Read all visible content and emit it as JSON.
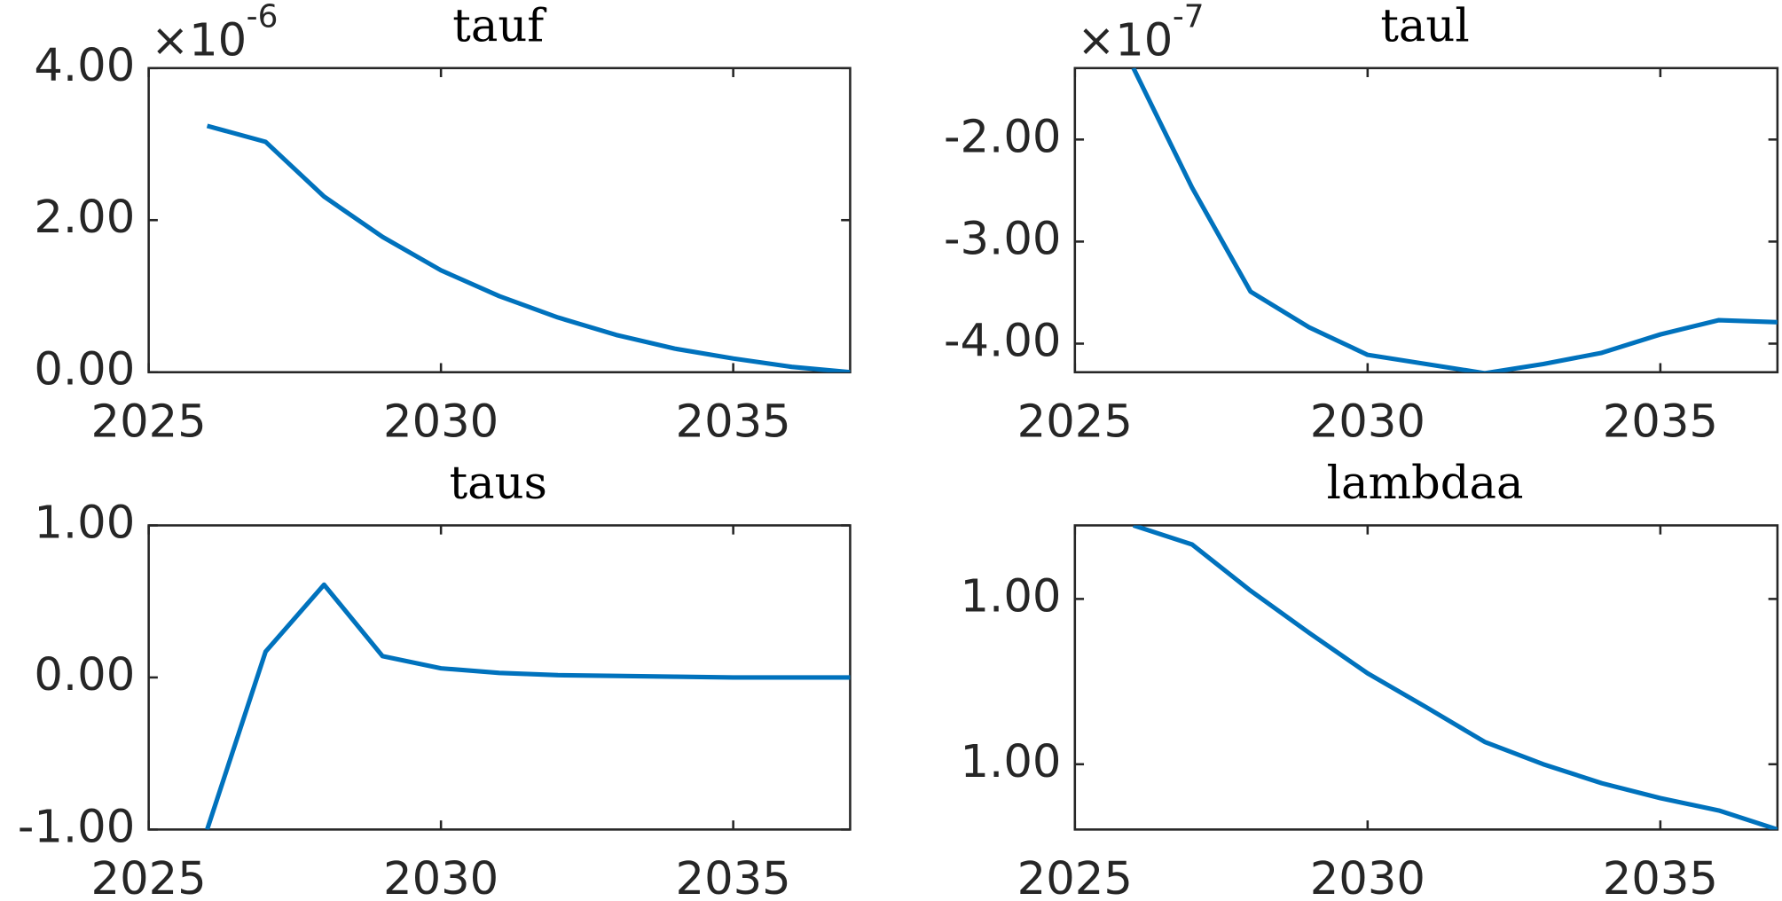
{
  "chart_data": [
    {
      "type": "line",
      "title": "tauf",
      "y_multiplier": "×10",
      "y_exponent": "-6",
      "x": [
        2026,
        2027,
        2028,
        2029,
        2030,
        2031,
        2032,
        2033,
        2034,
        2035,
        2036,
        2037
      ],
      "series": [
        {
          "color": "#0072bd",
          "values": [
            3.24,
            3.03,
            2.31,
            1.78,
            1.34,
            1.0,
            0.72,
            0.49,
            0.31,
            0.18,
            0.07,
            0.0
          ]
        }
      ],
      "xlim": [
        2025,
        2037
      ],
      "xticks": [
        2025,
        2030,
        2035
      ],
      "ylim": [
        0,
        4
      ],
      "yticks": [
        {
          "value": 0,
          "label": "0.00"
        },
        {
          "value": 2,
          "label": "2.00"
        },
        {
          "value": 4,
          "label": "4.00"
        }
      ]
    },
    {
      "type": "line",
      "title": "taul",
      "y_multiplier": "×10",
      "y_exponent": "-7",
      "x": [
        2026,
        2027,
        2028,
        2029,
        2030,
        2031,
        2032,
        2033,
        2034,
        2035,
        2036,
        2037
      ],
      "series": [
        {
          "color": "#0072bd",
          "values": [
            -1.3,
            -2.47,
            -3.49,
            -3.84,
            -4.11,
            -4.2,
            -4.29,
            -4.2,
            -4.09,
            -3.91,
            -3.77,
            -3.79
          ]
        }
      ],
      "xlim": [
        2025,
        2037
      ],
      "xticks": [
        2025,
        2030,
        2035
      ],
      "ylim": [
        -4.28,
        -1.3
      ],
      "yticks": [
        {
          "value": -4,
          "label": "-4.00"
        },
        {
          "value": -3,
          "label": "-3.00"
        },
        {
          "value": -2,
          "label": "-2.00"
        }
      ]
    },
    {
      "type": "line",
      "title": "taus",
      "x": [
        2026,
        2027,
        2028,
        2029,
        2030,
        2031,
        2032,
        2033,
        2034,
        2035,
        2036,
        2037
      ],
      "series": [
        {
          "color": "#0072bd",
          "values": [
            -1.0,
            0.17,
            0.61,
            0.14,
            0.06,
            0.03,
            0.015,
            0.01,
            0.005,
            0.0,
            0.0,
            0.0
          ]
        }
      ],
      "xlim": [
        2025,
        2037
      ],
      "xticks": [
        2025,
        2030,
        2035
      ],
      "ylim": [
        -1,
        1
      ],
      "yticks": [
        {
          "value": -1,
          "label": "-1.00"
        },
        {
          "value": 0,
          "label": "0.00"
        },
        {
          "value": 1,
          "label": "1.00"
        }
      ]
    },
    {
      "type": "line",
      "title": "lambdaa",
      "x": [
        2026,
        2027,
        2028,
        2029,
        2030,
        2031,
        2032,
        2033,
        2034,
        2035,
        2036,
        2037
      ],
      "series": [
        {
          "color": "#0072bd",
          "values": [
            1.00189,
            1.00166,
            1.0011,
            1.00059,
            1.0001,
            0.99969,
            0.99927,
            0.999,
            0.99877,
            0.99859,
            0.99844,
            0.99821
          ]
        }
      ],
      "xlim": [
        2025,
        2037
      ],
      "xticks": [
        2025,
        2030,
        2035
      ],
      "ylim": [
        0.99821,
        1.00189
      ],
      "yticks": [
        {
          "value": 0.999,
          "label": "1.00"
        },
        {
          "value": 1.001,
          "label": "1.00"
        }
      ]
    }
  ]
}
